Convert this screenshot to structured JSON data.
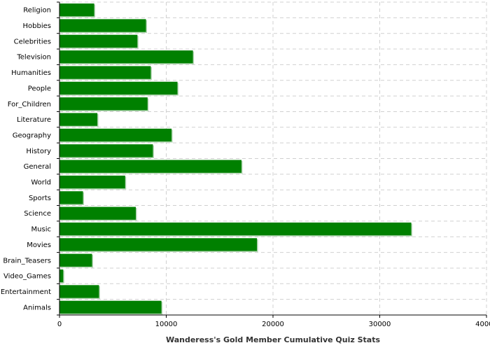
{
  "chart_data": {
    "type": "bar",
    "orientation": "horizontal",
    "title": "",
    "xlabel": "Wanderess's Gold Member Cumulative Quiz Stats",
    "ylabel": "",
    "xlim": [
      0,
      40000
    ],
    "xticks": [
      0,
      10000,
      20000,
      30000,
      40000
    ],
    "grid": true,
    "bar_color": "#008000",
    "categories": [
      "Religion",
      "Hobbies",
      "Celebrities",
      "Television",
      "Humanities",
      "People",
      "For_Children",
      "Literature",
      "Geography",
      "History",
      "General",
      "World",
      "Sports",
      "Science",
      "Music",
      "Movies",
      "Brain_Teasers",
      "Video_Games",
      "Entertainment",
      "Animals"
    ],
    "values": [
      3250,
      8100,
      7300,
      12500,
      8550,
      11050,
      8250,
      3550,
      10500,
      8750,
      17050,
      6150,
      2200,
      7150,
      32950,
      18500,
      3050,
      350,
      3700,
      9550
    ]
  }
}
